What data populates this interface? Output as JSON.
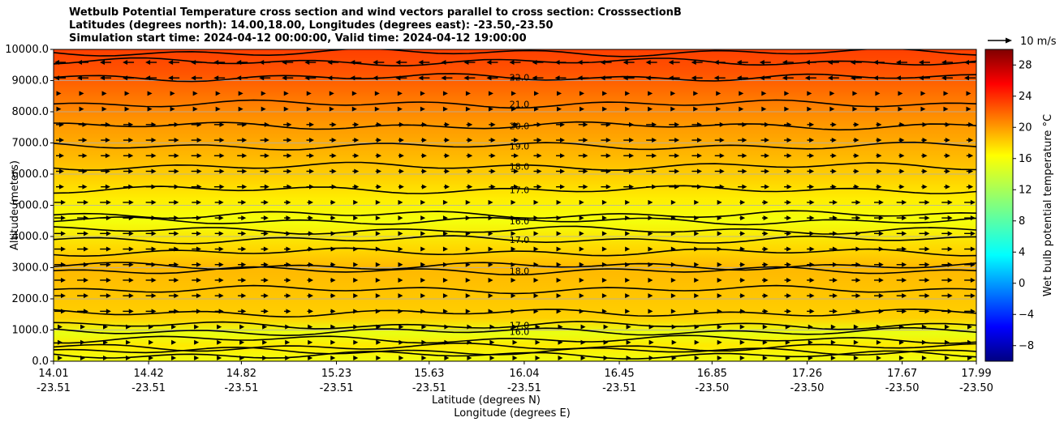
{
  "chart_data": {
    "type": "contour",
    "title_lines": [
      "Wetbulb Potential Temperature cross section and wind vectors parallel to cross section: CrosssectionB",
      "Latitudes (degrees north): 14.00,18.00, Longitudes (degrees east): -23.50,-23.50",
      "Simulation start time: 2024-04-12 00:00:00, Valid time: 2024-04-12 19:00:00"
    ],
    "ylabel": "Altitude (meters)",
    "xlabel_lat": "Latitude (degrees N)",
    "xlabel_lon": "Longitude (degrees E)",
    "ylim": [
      0,
      10000
    ],
    "yticks": [
      "0.0",
      "1000.0",
      "2000.0",
      "3000.0",
      "4000.0",
      "5000.0",
      "6000.0",
      "7000.0",
      "8000.0",
      "9000.0",
      "10000.0"
    ],
    "xlim_lat": [
      14.01,
      17.99
    ],
    "xticks_lat": [
      "14.01",
      "14.42",
      "14.82",
      "15.23",
      "15.63",
      "16.04",
      "16.45",
      "16.85",
      "17.26",
      "17.67",
      "17.99"
    ],
    "xticks_lon": [
      "-23.51",
      "-23.51",
      "-23.51",
      "-23.51",
      "-23.51",
      "-23.51",
      "-23.51",
      "-23.50",
      "-23.50",
      "-23.50",
      "-23.50"
    ],
    "colorbar": {
      "label": "Wet bulb potential temperature °C",
      "range": [
        -10,
        30
      ],
      "ticks": [
        "−8",
        "−4",
        "0",
        "4",
        "8",
        "12",
        "16",
        "20",
        "24",
        "28"
      ],
      "colormap": "jet"
    },
    "quiver_key": {
      "label": "10 m/s"
    },
    "contours": [
      {
        "label": "22.0",
        "altitude": 9100
      },
      {
        "label": "21.0",
        "altitude": 8250
      },
      {
        "label": "20.0",
        "altitude": 7550
      },
      {
        "label": "19.0",
        "altitude": 6900
      },
      {
        "label": "18.0",
        "altitude": 6250
      },
      {
        "label": "17.0",
        "altitude": 5500
      },
      {
        "label": "16.0",
        "altitude": 4500
      },
      {
        "label": "17.0",
        "altitude": 3900
      },
      {
        "label": "18.0",
        "altitude": 2900
      },
      {
        "label": "17.0",
        "altitude": 1150
      },
      {
        "label": "16.0",
        "altitude": 950
      }
    ],
    "grid": true
  }
}
